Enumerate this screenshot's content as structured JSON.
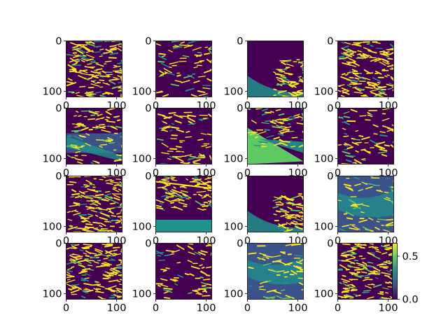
{
  "chart_data": {
    "type": "heatmap",
    "layout": {
      "rows": 4,
      "cols": 4
    },
    "axis": {
      "xlim": [
        0,
        111
      ],
      "ylim": [
        111,
        0
      ],
      "xticks": [
        0,
        100
      ],
      "yticks": [
        0,
        100
      ],
      "xtick_labels": [
        "0",
        "100"
      ],
      "ytick_labels": [
        "0",
        "100"
      ]
    },
    "colormap": {
      "name": "viridis",
      "range": [
        0,
        0.65
      ],
      "stops": [
        "#440154",
        "#3b528b",
        "#21918c",
        "#5ec962",
        "#fde725"
      ]
    },
    "colorbar": {
      "attached_to_panel": 15,
      "ticks": [
        0.0,
        0.5
      ],
      "tick_labels": [
        "0.0",
        "0.5"
      ]
    },
    "panels": [
      {
        "index": 0,
        "scene": "dense-texture"
      },
      {
        "index": 1,
        "scene": "sparse-texture"
      },
      {
        "index": 2,
        "scene": "diagonal-edge"
      },
      {
        "index": 3,
        "scene": "dense-texture"
      },
      {
        "index": 4,
        "scene": "layered-bands"
      },
      {
        "index": 5,
        "scene": "sparse-texture"
      },
      {
        "index": 6,
        "scene": "bright-wedge"
      },
      {
        "index": 7,
        "scene": "sparse-texture"
      },
      {
        "index": 8,
        "scene": "dense-texture"
      },
      {
        "index": 9,
        "scene": "bright-band-top"
      },
      {
        "index": 10,
        "scene": "diagonal-edge"
      },
      {
        "index": 11,
        "scene": "teal-field"
      },
      {
        "index": 12,
        "scene": "dense-texture"
      },
      {
        "index": 13,
        "scene": "sparse-texture"
      },
      {
        "index": 14,
        "scene": "teal-field"
      },
      {
        "index": 15,
        "scene": "dense-texture"
      }
    ]
  }
}
